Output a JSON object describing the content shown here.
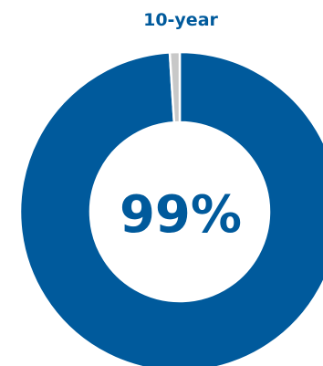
{
  "chart_data": {
    "type": "pie",
    "title": "10-year",
    "center_label": "99%",
    "categories": [
      "",
      ""
    ],
    "values": [
      99,
      1
    ],
    "colors": [
      "#005a9c",
      "#c8c8c8"
    ],
    "separator_color": "#ffffff"
  }
}
